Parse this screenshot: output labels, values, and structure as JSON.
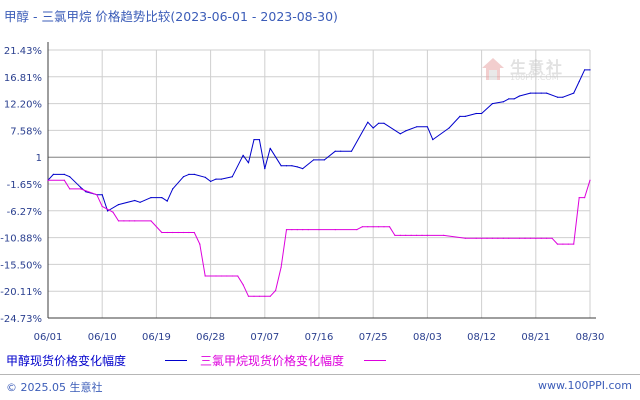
{
  "title": "甲醇 - 三氯甲烷 价格趋势比较(2023-06-01 - 2023-08-30)",
  "watermark": {
    "name": "生意社",
    "url": "100PPI.COM"
  },
  "footer": {
    "copyright": "© 2025.05 生意社",
    "site": "www.100PPI.com"
  },
  "colors": {
    "series1": "#0000cc",
    "series2": "#dd00dd",
    "grid": "#cfcfcf",
    "axis": "#3c3c3c",
    "text": "#2a3f8f"
  },
  "chart_data": {
    "type": "line",
    "title": "甲醇 - 三氯甲烷 价格趋势比较(2023-06-01 - 2023-08-30)",
    "x_tick_labels": [
      "06/01",
      "06/10",
      "06/19",
      "06/28",
      "07/07",
      "07/16",
      "07/25",
      "08/03",
      "08/12",
      "08/21",
      "08/30"
    ],
    "y_tick_labels": [
      "21.43%",
      "16.81%",
      "12.20%",
      "7.58%",
      "1",
      "-1.65%",
      "-6.27%",
      "-10.88%",
      "-15.50%",
      "-20.11%",
      "-24.73%"
    ],
    "ylim": [
      -24.73,
      21.43
    ],
    "grid": true,
    "legend_position": "bottom",
    "series": [
      {
        "name": "甲醇现货价格变化幅度",
        "color": "#0000cc",
        "x": [
          0,
          1,
          3,
          4,
          6,
          7,
          9,
          10,
          11,
          13,
          16,
          17,
          19,
          21,
          22,
          23,
          25,
          26,
          27,
          29,
          30,
          31,
          32,
          34,
          36,
          37,
          38,
          39,
          40,
          41,
          43,
          44,
          45,
          46,
          47,
          49,
          51,
          53,
          54,
          56,
          59,
          60,
          61,
          62,
          65,
          66,
          68,
          70,
          71,
          74,
          76,
          77,
          79,
          80,
          82,
          84,
          85,
          86,
          87,
          89,
          90,
          91,
          92,
          94,
          95,
          97,
          98,
          99,
          100
        ],
        "y": [
          -1.0,
          0.0,
          0.0,
          -0.4,
          -2.2,
          -3.0,
          -3.5,
          -3.5,
          -6.3,
          -5.2,
          -4.5,
          -4.8,
          -4.0,
          -4.0,
          -4.6,
          -2.5,
          -0.4,
          0.0,
          0.0,
          -0.5,
          -1.2,
          -0.8,
          -0.8,
          -0.4,
          3.3,
          2.0,
          6.0,
          6.0,
          1.0,
          4.5,
          1.5,
          1.5,
          1.5,
          1.3,
          1.0,
          2.5,
          2.5,
          4.0,
          4.0,
          4.0,
          9.0,
          8.0,
          8.8,
          8.8,
          7.0,
          7.5,
          8.2,
          8.2,
          6.0,
          8.0,
          10.0,
          10.0,
          10.5,
          10.5,
          12.2,
          12.5,
          13.0,
          13.0,
          13.5,
          14.0,
          14.0,
          14.0,
          14.0,
          13.3,
          13.3,
          14.0,
          16.0,
          18.0,
          18.0
        ]
      },
      {
        "name": "三氯甲烷现货价格变化幅度",
        "color": "#dd00dd",
        "x": [
          0,
          3,
          4,
          6,
          9,
          10,
          11,
          12,
          13,
          14,
          15,
          16,
          19,
          21,
          22,
          23,
          24,
          25,
          26,
          27,
          28,
          29,
          31,
          32,
          33,
          34,
          35,
          36,
          37,
          38,
          39,
          40,
          41,
          42,
          43,
          44,
          45,
          46,
          47,
          48,
          50,
          53,
          57,
          58,
          59,
          60,
          61,
          62,
          63,
          64,
          65,
          66,
          67,
          68,
          69,
          70,
          73,
          77,
          79,
          80,
          81,
          82,
          83,
          84,
          85,
          87,
          88,
          89,
          90,
          91,
          92,
          93,
          94,
          95,
          96,
          97,
          98,
          99,
          100
        ],
        "y": [
          -1.0,
          -1.0,
          -2.5,
          -2.5,
          -3.5,
          -5.5,
          -6.0,
          -6.5,
          -8.0,
          -8.0,
          -8.0,
          -8.0,
          -8.0,
          -10.0,
          -10.0,
          -10.0,
          -10.0,
          -10.0,
          -10.0,
          -10.0,
          -12.0,
          -17.5,
          -17.5,
          -17.5,
          -17.5,
          -17.5,
          -17.5,
          -19.0,
          -21.0,
          -21.0,
          -21.0,
          -21.0,
          -21.0,
          -20.0,
          -16.0,
          -9.5,
          -9.5,
          -9.5,
          -9.5,
          -9.5,
          -9.5,
          -9.5,
          -9.5,
          -9.0,
          -9.0,
          -9.0,
          -9.0,
          -9.0,
          -9.0,
          -10.5,
          -10.5,
          -10.5,
          -10.5,
          -10.5,
          -10.5,
          -10.5,
          -10.5,
          -11.0,
          -11.0,
          -11.0,
          -11.0,
          -11.0,
          -11.0,
          -11.0,
          -11.0,
          -11.0,
          -11.0,
          -11.0,
          -11.0,
          -11.0,
          -11.0,
          -11.0,
          -12.0,
          -12.0,
          -12.0,
          -12.0,
          -4.0,
          -4.0,
          -1.0
        ]
      }
    ]
  }
}
